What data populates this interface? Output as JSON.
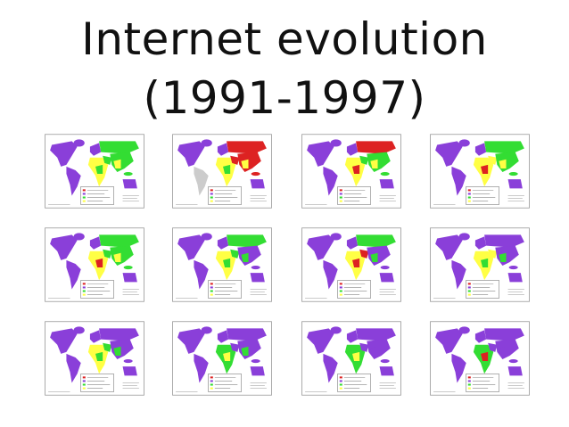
{
  "header": {
    "title_lines": [
      "Internet evolution",
      "(1991-1997)"
    ]
  }
}
